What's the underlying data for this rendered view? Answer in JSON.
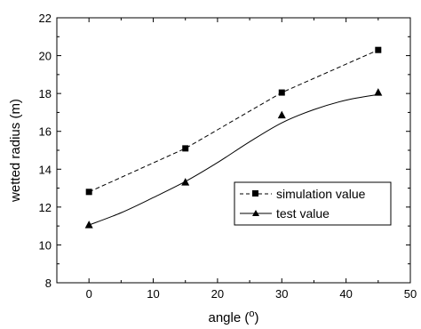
{
  "chart_data": {
    "type": "line",
    "xlabel": "angle (",
    "xlabel_unit": "o",
    "xlabel_close": ")",
    "ylabel": "wetted radius (m)",
    "xlim": [
      -5,
      50
    ],
    "ylim": [
      8,
      22
    ],
    "xticks": [
      0,
      10,
      20,
      30,
      40,
      50
    ],
    "yticks": [
      8,
      10,
      12,
      14,
      16,
      18,
      20,
      22
    ],
    "grid": false,
    "legend_position": "lower-right",
    "series": [
      {
        "name": "simulation value",
        "marker": "square",
        "line": "dashed",
        "x": [
          0,
          15,
          30,
          45
        ],
        "y": [
          12.8,
          15.1,
          18.05,
          20.3
        ],
        "color": "#000000"
      },
      {
        "name": "test value",
        "marker": "triangle",
        "line": "solid-smooth",
        "x": [
          0,
          15,
          30,
          45
        ],
        "y": [
          11.05,
          13.3,
          16.85,
          18.05
        ],
        "curve": [
          [
            0,
            11.05
          ],
          [
            5,
            11.7
          ],
          [
            10,
            12.5
          ],
          [
            15,
            13.35
          ],
          [
            20,
            14.35
          ],
          [
            25,
            15.45
          ],
          [
            30,
            16.45
          ],
          [
            35,
            17.15
          ],
          [
            40,
            17.65
          ],
          [
            45,
            17.95
          ]
        ],
        "color": "#000000"
      }
    ]
  }
}
